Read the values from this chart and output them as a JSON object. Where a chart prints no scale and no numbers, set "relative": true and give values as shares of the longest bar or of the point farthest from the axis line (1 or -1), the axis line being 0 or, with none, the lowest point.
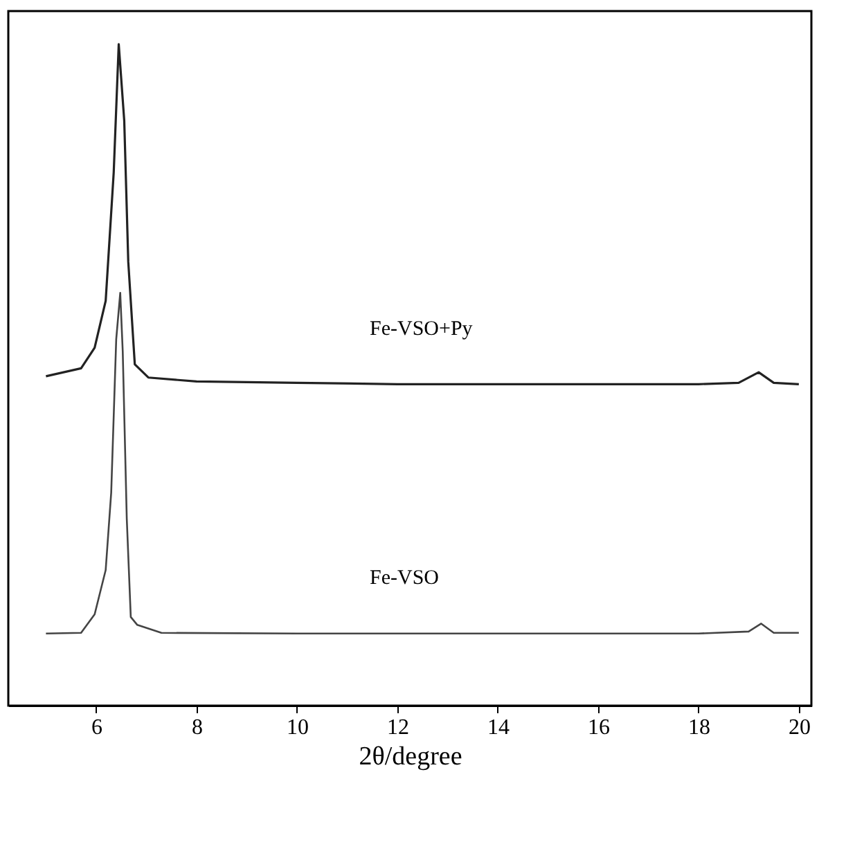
{
  "chart_data": {
    "type": "line",
    "xlabel": "2θ/degree",
    "xlim": [
      4.25,
      20.25
    ],
    "xticks": [
      6,
      8,
      10,
      12,
      14,
      16,
      18,
      20
    ],
    "relative": true,
    "grid": false,
    "tick_labels": "x",
    "marker": "none",
    "line_style": "solid",
    "series": [
      {
        "name": "Fe-VSO+Py",
        "color": "#222222",
        "x": [
          5.0,
          5.7,
          5.97,
          6.19,
          6.35,
          6.45,
          6.56,
          6.64,
          6.77,
          7.04,
          8.0,
          10.0,
          12.0,
          14.0,
          16.0,
          18.0,
          18.8,
          19.2,
          19.5,
          20.0
        ],
        "values": [
          0.498,
          0.51,
          0.541,
          0.612,
          0.806,
          1.0,
          0.884,
          0.671,
          0.516,
          0.496,
          0.49,
          0.488,
          0.486,
          0.486,
          0.486,
          0.486,
          0.488,
          0.504,
          0.488,
          0.486
        ]
      },
      {
        "name": "Fe-VSO",
        "color": "#444444",
        "x": [
          5.0,
          5.7,
          5.97,
          6.19,
          6.3,
          6.4,
          6.48,
          6.53,
          6.61,
          6.69,
          6.82,
          7.3,
          10.0,
          12.0,
          14.0,
          16.0,
          18.0,
          19.0,
          19.25,
          19.5,
          20.0
        ],
        "values": [
          0.109,
          0.11,
          0.138,
          0.205,
          0.322,
          0.554,
          0.624,
          0.535,
          0.283,
          0.134,
          0.122,
          0.11,
          0.109,
          0.109,
          0.109,
          0.109,
          0.109,
          0.112,
          0.124,
          0.11,
          0.11
        ]
      }
    ]
  }
}
